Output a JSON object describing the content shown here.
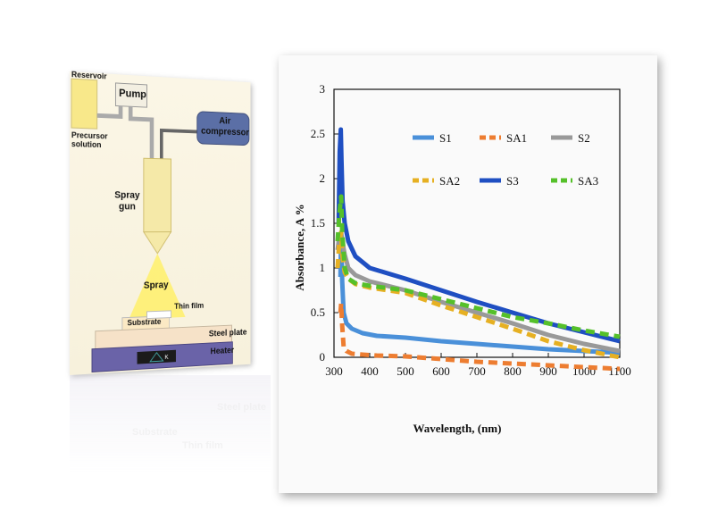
{
  "schematic": {
    "labels": {
      "reservoir": "Reservoir",
      "pump": "Pump",
      "precursor": "Precursor solution",
      "air_compressor": "Air compressor",
      "spray_gun": "Spray gun",
      "spray": "Spray",
      "thin_film": "Thin film",
      "substrate": "Substrate",
      "steel_plate": "Steel plate",
      "heater": "Heater"
    },
    "colors": {
      "tube": "#666666",
      "compressor": "#5b6fa6",
      "gun": "#f5e9a8",
      "heater": "#6a63a8",
      "spray": "#fff06a"
    }
  },
  "chart_data": {
    "type": "line",
    "title": "",
    "xlabel": "Wavelength, (nm)",
    "ylabel": "Absorbance, A %",
    "xlim": [
      300,
      1100
    ],
    "ylim": [
      0,
      3
    ],
    "xticks": [
      "300",
      "400",
      "500",
      "600",
      "700",
      "800",
      "900",
      "1000",
      "1100"
    ],
    "yticks": [
      "0",
      "0.5",
      "1",
      "1.5",
      "2",
      "2.5",
      "3"
    ],
    "series": [
      {
        "name": "S1",
        "color": "#4a90d9",
        "dash": false,
        "x": [
          318,
          320,
          323,
          327,
          335,
          350,
          380,
          420,
          500,
          600,
          700,
          800,
          900,
          1000,
          1100
        ],
        "y": [
          0.9,
          1.35,
          0.85,
          0.5,
          0.38,
          0.32,
          0.27,
          0.24,
          0.22,
          0.18,
          0.15,
          0.12,
          0.09,
          0.07,
          0.05
        ]
      },
      {
        "name": "SA1",
        "color": "#ed7d31",
        "dash": true,
        "x": [
          318,
          320,
          323,
          327,
          335,
          350,
          380,
          420,
          500,
          600,
          700,
          800,
          900,
          1000,
          1100
        ],
        "y": [
          0.5,
          0.6,
          0.35,
          0.12,
          0.07,
          0.04,
          0.03,
          0.02,
          0.01,
          -0.02,
          -0.05,
          -0.07,
          -0.09,
          -0.11,
          -0.13
        ]
      },
      {
        "name": "S2",
        "color": "#999999",
        "dash": false,
        "x": [
          310,
          315,
          320,
          323,
          330,
          340,
          360,
          400,
          500,
          600,
          700,
          800,
          900,
          1000,
          1100
        ],
        "y": [
          1.2,
          1.35,
          1.4,
          1.3,
          1.15,
          1.0,
          0.92,
          0.85,
          0.75,
          0.62,
          0.5,
          0.38,
          0.25,
          0.15,
          0.07
        ]
      },
      {
        "name": "SA2",
        "color": "#e6b022",
        "dash": true,
        "x": [
          310,
          315,
          320,
          323,
          330,
          340,
          360,
          400,
          500,
          600,
          700,
          800,
          900,
          1000,
          1100
        ],
        "y": [
          1.0,
          1.3,
          1.4,
          1.15,
          0.95,
          0.88,
          0.82,
          0.78,
          0.72,
          0.58,
          0.45,
          0.32,
          0.18,
          0.08,
          0.0
        ]
      },
      {
        "name": "S3",
        "color": "#1f4fc2",
        "dash": false,
        "x": [
          313,
          316,
          319,
          321,
          324,
          330,
          340,
          360,
          400,
          500,
          600,
          700,
          800,
          900,
          1000,
          1100
        ],
        "y": [
          1.5,
          2.3,
          2.55,
          2.2,
          1.75,
          1.5,
          1.3,
          1.13,
          1.0,
          0.88,
          0.75,
          0.62,
          0.5,
          0.38,
          0.28,
          0.18
        ]
      },
      {
        "name": "SA3",
        "color": "#55c02a",
        "dash": true,
        "x": [
          310,
          315,
          320,
          323,
          330,
          340,
          360,
          400,
          500,
          600,
          700,
          800,
          900,
          1000,
          1100
        ],
        "y": [
          1.3,
          1.6,
          1.8,
          1.4,
          1.0,
          0.88,
          0.83,
          0.8,
          0.75,
          0.65,
          0.55,
          0.45,
          0.38,
          0.3,
          0.23
        ]
      }
    ],
    "legend": "top-right",
    "grid": false
  }
}
